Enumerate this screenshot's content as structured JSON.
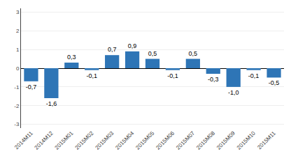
{
  "chart_data": {
    "type": "bar",
    "categories": [
      "2014M11",
      "2014M12",
      "2015M01",
      "2015M02",
      "2015M03",
      "2015M04",
      "2015M05",
      "2015M06",
      "2015M07",
      "2015M08",
      "2015M09",
      "2015M10",
      "2015M11"
    ],
    "values": [
      -0.7,
      -1.6,
      0.3,
      -0.1,
      0.7,
      0.9,
      0.5,
      -0.1,
      0.5,
      -0.3,
      -1.0,
      -0.1,
      -0.5
    ],
    "value_labels": [
      "-0,7",
      "-1,6",
      "0,3",
      "-0,1",
      "0,7",
      "0,9",
      "0,5",
      "-0,1",
      "0,5",
      "-0,3",
      "-1,0",
      "-0,1",
      "-0,5"
    ],
    "color": "#2E75B6",
    "ylim": [
      -3.2,
      3.2
    ],
    "yticks": [
      -3,
      -2,
      -1,
      0,
      1,
      2,
      3
    ],
    "grid": true,
    "data_labels": true
  }
}
